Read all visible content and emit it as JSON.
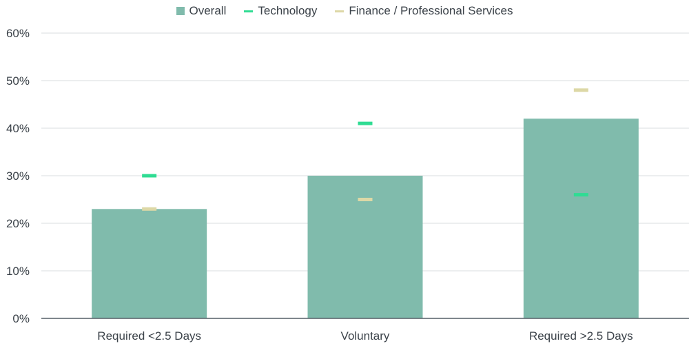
{
  "chart_data": {
    "type": "bar",
    "categories": [
      "Required <2.5 Days",
      "Voluntary",
      "Required >2.5 Days"
    ],
    "series": [
      {
        "name": "Overall",
        "kind": "bar",
        "color": "#80bbac",
        "values": [
          23,
          30,
          42
        ]
      },
      {
        "name": "Technology",
        "kind": "marker",
        "color": "#2fdc93",
        "values": [
          30,
          41,
          26
        ]
      },
      {
        "name": "Finance / Professional Services",
        "kind": "marker",
        "color": "#ddd8a6",
        "values": [
          23,
          25,
          48
        ]
      }
    ],
    "yticks": [
      "0%",
      "10%",
      "20%",
      "30%",
      "40%",
      "50%",
      "60%"
    ],
    "ylim": [
      0,
      60
    ],
    "grid": true,
    "legend_position": "top-center",
    "colors": {
      "axis": "#555e66",
      "grid": "#d9dcdf",
      "text": "#3b4249"
    }
  }
}
